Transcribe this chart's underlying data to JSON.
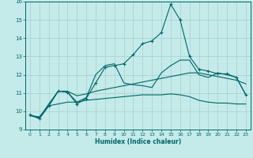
{
  "xlabel": "Humidex (Indice chaleur)",
  "bg_color": "#c5eaea",
  "grid_color": "#aad4d4",
  "line_color": "#006666",
  "xlim": [
    -0.5,
    23.5
  ],
  "ylim": [
    9,
    16
  ],
  "yticks": [
    9,
    10,
    11,
    12,
    13,
    14,
    15,
    16
  ],
  "xticks": [
    0,
    1,
    2,
    3,
    4,
    5,
    6,
    7,
    8,
    9,
    10,
    11,
    12,
    13,
    14,
    15,
    16,
    17,
    18,
    19,
    20,
    21,
    22,
    23
  ],
  "line1": [
    9.8,
    9.6,
    10.3,
    11.1,
    11.05,
    10.4,
    10.7,
    11.55,
    12.4,
    12.5,
    12.6,
    13.1,
    13.7,
    13.85,
    14.3,
    15.85,
    15.0,
    13.0,
    12.3,
    12.2,
    12.05,
    12.05,
    11.85,
    10.9
  ],
  "line2": [
    9.8,
    9.6,
    10.3,
    11.1,
    11.05,
    10.5,
    10.75,
    12.0,
    12.5,
    12.6,
    11.55,
    11.45,
    11.4,
    11.3,
    12.1,
    12.5,
    12.8,
    12.8,
    12.0,
    11.85,
    12.1,
    12.0,
    11.85,
    10.9
  ],
  "line3": [
    9.8,
    9.65,
    10.4,
    11.1,
    11.1,
    10.85,
    10.95,
    11.1,
    11.2,
    11.3,
    11.4,
    11.5,
    11.6,
    11.7,
    11.8,
    11.9,
    12.0,
    12.1,
    12.1,
    12.0,
    11.9,
    11.8,
    11.7,
    11.5
  ],
  "line4": [
    9.75,
    9.7,
    10.3,
    10.4,
    10.5,
    10.5,
    10.6,
    10.65,
    10.7,
    10.75,
    10.8,
    10.85,
    10.9,
    10.9,
    10.9,
    10.95,
    10.9,
    10.8,
    10.6,
    10.5,
    10.45,
    10.45,
    10.4,
    10.4
  ]
}
